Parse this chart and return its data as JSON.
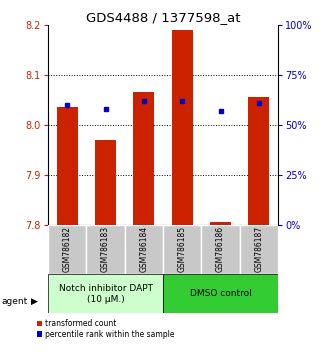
{
  "title": "GDS4488 / 1377598_at",
  "categories": [
    "GSM786182",
    "GSM786183",
    "GSM786184",
    "GSM786185",
    "GSM786186",
    "GSM786187"
  ],
  "red_values": [
    8.035,
    7.97,
    8.065,
    8.19,
    7.805,
    8.055
  ],
  "blue_values": [
    60,
    58,
    62,
    62,
    57,
    61
  ],
  "ylim_left": [
    7.8,
    8.2
  ],
  "ylim_right": [
    0,
    100
  ],
  "yticks_left": [
    7.8,
    7.9,
    8.0,
    8.1,
    8.2
  ],
  "yticks_right": [
    0,
    25,
    50,
    75,
    100
  ],
  "ytick_labels_right": [
    "0%",
    "25%",
    "50%",
    "75%",
    "100%"
  ],
  "bar_color": "#cc2200",
  "dot_color": "#0000cc",
  "bg_plot": "#ffffff",
  "bg_xtick": "#c8c8c8",
  "group1_label": "Notch inhibitor DAPT\n(10 μM.)",
  "group2_label": "DMSO control",
  "group1_color": "#ccffcc",
  "group2_color": "#33cc33",
  "legend_red": "transformed count",
  "legend_blue": "percentile rank within the sample",
  "bar_width": 0.55,
  "bar_bottom": 7.8,
  "title_fontsize": 9.5,
  "tick_fontsize": 7,
  "cat_fontsize": 5.5,
  "group_fontsize": 6.5,
  "legend_fontsize": 5.5
}
